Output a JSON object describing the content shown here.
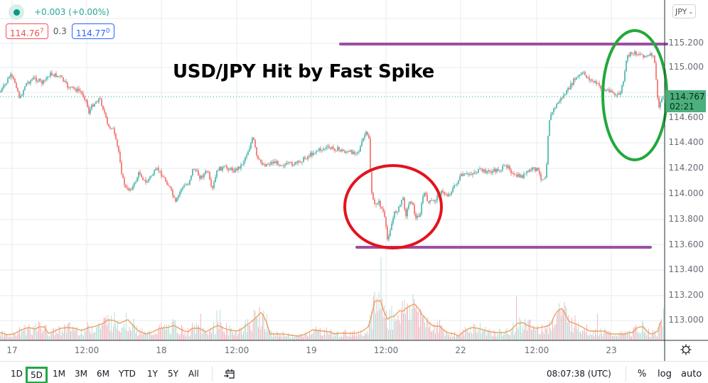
{
  "header": {
    "change": "+0.003 (+0.00%)",
    "bid": "114.76",
    "bid_sup": "7",
    "spread": "0.3",
    "ask": "114.77",
    "ask_sup": "0",
    "currency_button": "JPY"
  },
  "annotation": {
    "title": "USD/JPY Hit by Fast Spike",
    "resistance_color": "#9c4fa3",
    "support_color": "#9c4fa3",
    "red_circle_color": "#e3141c",
    "green_circle_color": "#22a83b"
  },
  "price_axis": {
    "labels": [
      "115.200",
      "115.000",
      "114.800",
      "114.600",
      "114.400",
      "114.200",
      "114.000",
      "113.800",
      "113.600",
      "113.400",
      "113.200",
      "113.000"
    ],
    "current_price": "114.767",
    "countdown": "02:21"
  },
  "time_axis": {
    "labels": [
      "17",
      "12:00",
      "18",
      "12:00",
      "19",
      "12:00",
      "22",
      "12:00",
      "23"
    ]
  },
  "toolbar": {
    "ranges": [
      "1D",
      "5D",
      "1M",
      "3M",
      "6M",
      "YTD",
      "1Y",
      "5Y",
      "All"
    ],
    "active_range": "5D",
    "clock": "08:07:38 (UTC)",
    "percent": "%",
    "log": "log",
    "auto": "auto"
  },
  "colors": {
    "up": "#26a69a",
    "down": "#ef5350",
    "volume_ma": "#f0a060",
    "current_badge": "#4caf7d",
    "grid": "#e6ecf2"
  },
  "chart_data": {
    "type": "line",
    "title": "USD/JPY Hit by Fast Spike",
    "symbol": "USD/JPY",
    "xlabel": "",
    "ylabel": "JPY",
    "ylim": [
      112.9,
      115.35
    ],
    "grid": true,
    "x": [
      "17 00:00",
      "17 06:00",
      "17 12:00",
      "17 18:00",
      "18 00:00",
      "18 06:00",
      "18 12:00",
      "18 18:00",
      "19 00:00",
      "19 06:00",
      "19 10:00",
      "19 12:00",
      "19 18:00",
      "22 00:00",
      "22 06:00",
      "22 12:00",
      "22 18:00",
      "23 00:00",
      "23 04:00",
      "23 07:00",
      "23 08:00"
    ],
    "series": [
      {
        "name": "Price",
        "values": [
          114.85,
          114.95,
          114.9,
          114.05,
          114.15,
          114.18,
          114.25,
          114.28,
          114.35,
          114.45,
          114.1,
          113.65,
          113.95,
          114.0,
          114.18,
          114.15,
          114.9,
          114.85,
          114.78,
          115.1,
          114.767
        ]
      }
    ],
    "annotations": [
      {
        "type": "hline",
        "label": "resistance",
        "value": 115.18,
        "color": "#9c4fa3"
      },
      {
        "type": "hline",
        "label": "support",
        "value": 113.58,
        "color": "#9c4fa3"
      },
      {
        "type": "ellipse",
        "label": "spike low area",
        "color": "#e3141c"
      },
      {
        "type": "ellipse",
        "label": "spike high/drop area",
        "color": "#22a83b"
      }
    ],
    "current_price": 114.767,
    "volume_panel": true,
    "legend_position": "top-left"
  }
}
